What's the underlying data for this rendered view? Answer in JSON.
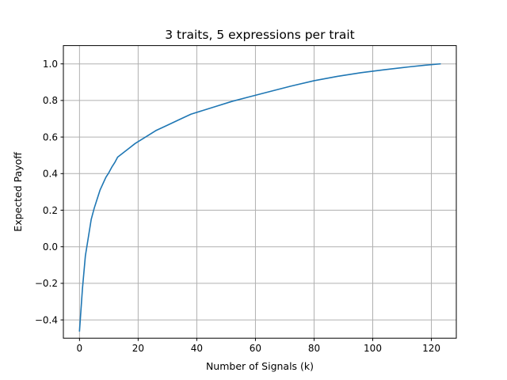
{
  "chart_data": {
    "type": "line",
    "title": "3 traits, 5 expressions per trait",
    "xlabel": "Number of Signals (k)",
    "ylabel": "Expected Payoff",
    "xlim": [
      -5.5,
      128.5
    ],
    "ylim": [
      -0.5,
      1.1
    ],
    "xticks": [
      0,
      20,
      40,
      60,
      80,
      100,
      120
    ],
    "yticks": [
      -0.4,
      -0.2,
      0.0,
      0.2,
      0.4,
      0.6,
      0.8,
      1.0
    ],
    "xtick_labels": [
      "0",
      "20",
      "40",
      "60",
      "80",
      "100",
      "120"
    ],
    "ytick_labels": [
      "−0.4",
      "−0.2",
      "0.0",
      "0.2",
      "0.4",
      "0.6",
      "0.8",
      "1.0"
    ],
    "grid": true,
    "series": [
      {
        "color": "#1f77b4",
        "x": [
          0,
          1,
          2,
          3,
          4,
          5,
          6,
          7,
          8,
          9,
          10,
          11,
          12,
          13,
          15,
          17,
          19,
          22,
          26,
          30,
          34,
          38,
          42,
          46,
          52,
          58,
          64,
          72,
          80,
          88,
          96,
          104,
          112,
          118,
          123
        ],
        "y": [
          -0.46,
          -0.23,
          -0.05,
          0.05,
          0.15,
          0.21,
          0.26,
          0.31,
          0.345,
          0.38,
          0.405,
          0.435,
          0.46,
          0.49,
          0.515,
          0.54,
          0.565,
          0.595,
          0.635,
          0.665,
          0.695,
          0.725,
          0.745,
          0.765,
          0.795,
          0.82,
          0.845,
          0.878,
          0.908,
          0.932,
          0.952,
          0.968,
          0.983,
          0.993,
          1.0
        ]
      }
    ]
  }
}
